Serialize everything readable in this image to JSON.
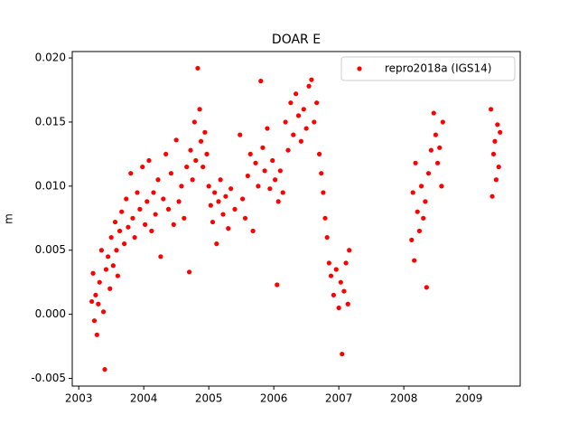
{
  "chart_data": {
    "type": "scatter",
    "title": "DOAR E",
    "y_label": "m",
    "xlim": [
      2002.9,
      2009.79
    ],
    "ylim": [
      -0.0056,
      0.0205
    ],
    "xticks": [
      2003,
      2004,
      2005,
      2006,
      2007,
      2008,
      2009
    ],
    "yticks": [
      {
        "value": -0.005,
        "label": "-0.005"
      },
      {
        "value": 0,
        "label": "0.000"
      },
      {
        "value": 0.005,
        "label": "0.005"
      },
      {
        "value": 0.01,
        "label": "0.010"
      },
      {
        "value": 0.015,
        "label": "0.015"
      },
      {
        "value": 0.02,
        "label": "0.020"
      }
    ],
    "grid": false,
    "legend": "upper right",
    "series": [
      {
        "name": "repro2018a (IGS14)",
        "color": "#ff0000",
        "x": [
          2003.2,
          2003.22,
          2003.24,
          2003.26,
          2003.28,
          2003.3,
          2003.32,
          2003.35,
          2003.38,
          2003.4,
          2003.42,
          2003.45,
          2003.48,
          2003.5,
          2003.53,
          2003.56,
          2003.58,
          2003.6,
          2003.63,
          2003.66,
          2003.7,
          2003.73,
          2003.76,
          2003.8,
          2003.83,
          2003.86,
          2003.9,
          2003.94,
          2003.98,
          2004.02,
          2004.05,
          2004.08,
          2004.12,
          2004.15,
          2004.18,
          2004.22,
          2004.26,
          2004.3,
          2004.34,
          2004.38,
          2004.42,
          2004.46,
          2004.5,
          2004.54,
          2004.58,
          2004.62,
          2004.66,
          2004.7,
          2004.72,
          2004.75,
          2004.78,
          2004.8,
          2004.83,
          2004.86,
          2004.88,
          2004.91,
          2004.94,
          2004.97,
          2005.0,
          2005.03,
          2005.06,
          2005.09,
          2005.12,
          2005.15,
          2005.18,
          2005.22,
          2005.26,
          2005.3,
          2005.34,
          2005.4,
          2005.48,
          2005.52,
          2005.56,
          2005.6,
          2005.64,
          2005.68,
          2005.72,
          2005.76,
          2005.8,
          2005.83,
          2005.86,
          2005.9,
          2005.94,
          2005.98,
          2006.02,
          2006.05,
          2006.07,
          2006.1,
          2006.14,
          2006.18,
          2006.22,
          2006.26,
          2006.3,
          2006.34,
          2006.38,
          2006.42,
          2006.46,
          2006.5,
          2006.54,
          2006.58,
          2006.62,
          2006.66,
          2006.7,
          2006.73,
          2006.76,
          2006.79,
          2006.82,
          2006.85,
          2006.88,
          2006.92,
          2006.96,
          2007.0,
          2007.03,
          2007.05,
          2007.08,
          2007.11,
          2007.14,
          2007.16,
          2008.12,
          2008.14,
          2008.16,
          2008.18,
          2008.21,
          2008.24,
          2008.27,
          2008.3,
          2008.33,
          2008.35,
          2008.38,
          2008.42,
          2008.46,
          2008.49,
          2008.52,
          2008.55,
          2008.58,
          2008.6,
          2009.34,
          2009.36,
          2009.38,
          2009.4,
          2009.42,
          2009.44,
          2009.46,
          2009.48
        ],
        "values": [
          0.001,
          0.0032,
          -0.0005,
          0.0015,
          -0.0016,
          0.0008,
          0.0025,
          0.005,
          0.0002,
          -0.0043,
          0.0035,
          0.0045,
          0.002,
          0.006,
          0.0038,
          0.0072,
          0.005,
          0.003,
          0.0065,
          0.008,
          0.0055,
          0.009,
          0.0068,
          0.011,
          0.0075,
          0.006,
          0.0095,
          0.0082,
          0.0115,
          0.007,
          0.0088,
          0.012,
          0.0065,
          0.0095,
          0.0078,
          0.0105,
          0.0045,
          0.009,
          0.0125,
          0.0082,
          0.011,
          0.007,
          0.0136,
          0.0088,
          0.01,
          0.0075,
          0.0115,
          0.0033,
          0.0128,
          0.0105,
          0.015,
          0.012,
          0.0192,
          0.016,
          0.0135,
          0.0115,
          0.0142,
          0.0125,
          0.01,
          0.0085,
          0.0072,
          0.0095,
          0.0055,
          0.0088,
          0.0105,
          0.0078,
          0.0092,
          0.0067,
          0.0098,
          0.0082,
          0.014,
          0.009,
          0.0075,
          0.0108,
          0.0125,
          0.0065,
          0.0118,
          0.01,
          0.0182,
          0.013,
          0.0112,
          0.0145,
          0.0098,
          0.012,
          0.0105,
          0.0023,
          0.0088,
          0.0112,
          0.0095,
          0.015,
          0.0128,
          0.0165,
          0.014,
          0.0172,
          0.0155,
          0.0135,
          0.016,
          0.0145,
          0.0178,
          0.0183,
          0.015,
          0.0165,
          0.0125,
          0.011,
          0.0095,
          0.0075,
          0.006,
          0.004,
          0.003,
          0.0015,
          0.0035,
          0.0005,
          0.0025,
          -0.0031,
          0.0018,
          0.004,
          0.0008,
          0.005,
          0.0058,
          0.0095,
          0.0042,
          0.0118,
          0.008,
          0.0065,
          0.01,
          0.0075,
          0.0088,
          0.0021,
          0.011,
          0.0128,
          0.0157,
          0.014,
          0.0118,
          0.013,
          0.01,
          0.015,
          0.016,
          0.0092,
          0.0125,
          0.0135,
          0.0105,
          0.0148,
          0.0115,
          0.0142
        ]
      }
    ]
  }
}
